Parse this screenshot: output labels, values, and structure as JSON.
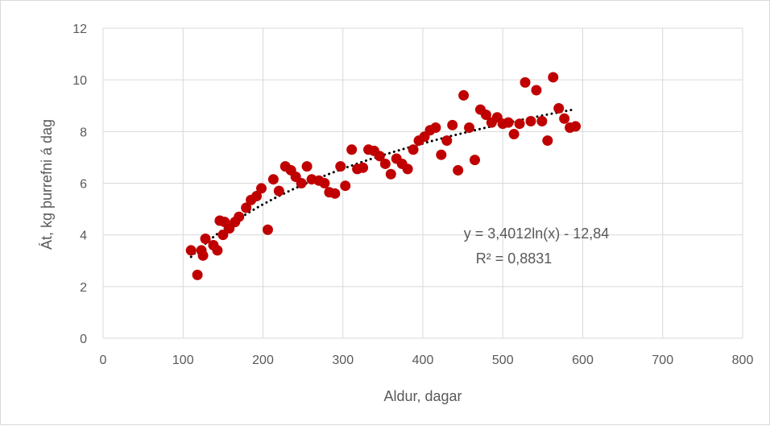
{
  "chart_data": {
    "type": "scatter",
    "xlabel": "Aldur, dagar",
    "ylabel": "Át, kg þurrefni á dag",
    "xlim": [
      0,
      800
    ],
    "ylim": [
      0,
      12
    ],
    "x_ticks": [
      "0",
      "100",
      "200",
      "300",
      "400",
      "500",
      "600",
      "700",
      "800"
    ],
    "y_ticks": [
      "0",
      "2",
      "4",
      "6",
      "8",
      "10",
      "12"
    ],
    "grid": true,
    "marker_color": "#c00000",
    "trendline": {
      "type": "logarithmic",
      "a": 3.4012,
      "b": -12.84,
      "x_range": [
        110,
        592
      ],
      "style": "dotted",
      "color": "#000000",
      "equation": "y = 3,4012ln(x) - 12,84",
      "r_squared": "R² = 0,8831"
    },
    "points": [
      [
        110,
        3.4
      ],
      [
        118,
        2.45
      ],
      [
        123,
        3.4
      ],
      [
        125,
        3.2
      ],
      [
        128,
        3.85
      ],
      [
        138,
        3.6
      ],
      [
        143,
        3.4
      ],
      [
        146,
        4.55
      ],
      [
        150,
        4.0
      ],
      [
        152,
        4.5
      ],
      [
        158,
        4.25
      ],
      [
        165,
        4.5
      ],
      [
        170,
        4.7
      ],
      [
        179,
        5.05
      ],
      [
        185,
        5.35
      ],
      [
        192,
        5.5
      ],
      [
        198,
        5.8
      ],
      [
        206,
        4.2
      ],
      [
        213,
        6.15
      ],
      [
        220,
        5.7
      ],
      [
        228,
        6.65
      ],
      [
        235,
        6.5
      ],
      [
        241,
        6.25
      ],
      [
        248,
        6.0
      ],
      [
        255,
        6.65
      ],
      [
        261,
        6.15
      ],
      [
        270,
        6.1
      ],
      [
        277,
        6.0
      ],
      [
        283,
        5.65
      ],
      [
        290,
        5.6
      ],
      [
        297,
        6.65
      ],
      [
        303,
        5.9
      ],
      [
        311,
        7.3
      ],
      [
        318,
        6.55
      ],
      [
        325,
        6.6
      ],
      [
        332,
        7.3
      ],
      [
        339,
        7.25
      ],
      [
        346,
        7.05
      ],
      [
        353,
        6.75
      ],
      [
        360,
        6.35
      ],
      [
        367,
        6.95
      ],
      [
        374,
        6.75
      ],
      [
        381,
        6.55
      ],
      [
        388,
        7.3
      ],
      [
        395,
        7.65
      ],
      [
        402,
        7.8
      ],
      [
        409,
        8.05
      ],
      [
        416,
        8.15
      ],
      [
        423,
        7.1
      ],
      [
        430,
        7.65
      ],
      [
        437,
        8.25
      ],
      [
        444,
        6.5
      ],
      [
        451,
        9.4
      ],
      [
        458,
        8.15
      ],
      [
        465,
        6.9
      ],
      [
        472,
        8.85
      ],
      [
        479,
        8.65
      ],
      [
        486,
        8.35
      ],
      [
        493,
        8.55
      ],
      [
        500,
        8.3
      ],
      [
        507,
        8.35
      ],
      [
        514,
        7.9
      ],
      [
        521,
        8.3
      ],
      [
        528,
        9.9
      ],
      [
        535,
        8.4
      ],
      [
        542,
        9.6
      ],
      [
        549,
        8.4
      ],
      [
        556,
        7.65
      ],
      [
        563,
        10.1
      ],
      [
        570,
        8.9
      ],
      [
        577,
        8.5
      ],
      [
        584,
        8.15
      ],
      [
        591,
        8.2
      ]
    ]
  }
}
